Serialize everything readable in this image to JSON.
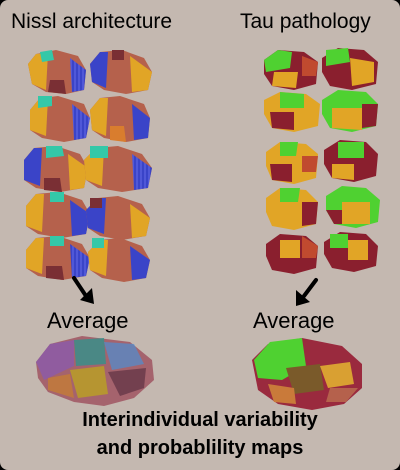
{
  "left_column": {
    "title": "Nissl architecture",
    "average_label": "Average"
  },
  "right_column": {
    "title": "Tau pathology",
    "average_label": "Average"
  },
  "caption": {
    "line1": "Interindividual variability",
    "line2": "and probablility maps"
  },
  "colors": {
    "background": "#c4b8b0",
    "nissl_palette": [
      "#3a44c8",
      "#b5614c",
      "#e1a526",
      "#34c8a8",
      "#7a2f34",
      "#d97d2e"
    ],
    "tau_palette": [
      "#4fd131",
      "#8a1f2e",
      "#e1a526",
      "#c04a2f",
      "#5a8a2a"
    ]
  }
}
